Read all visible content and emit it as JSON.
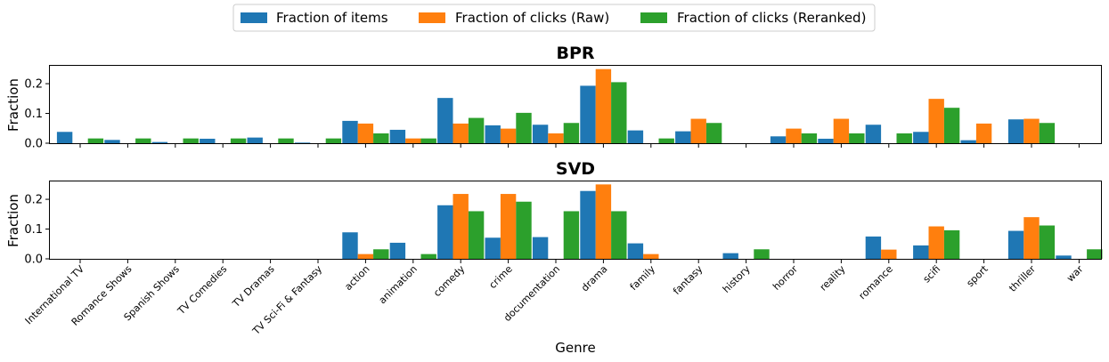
{
  "legend": {
    "items": [
      {
        "label": "Fraction of items",
        "color": "#1f77b4"
      },
      {
        "label": "Fraction of clicks (Raw)",
        "color": "#ff7f0e"
      },
      {
        "label": "Fraction of clicks (Reranked)",
        "color": "#2ca02c"
      }
    ]
  },
  "chart_data": [
    {
      "type": "bar",
      "title": "BPR",
      "xlabel": "",
      "ylabel": "Fraction",
      "ylim": [
        0,
        0.26
      ],
      "yticks": [
        "0.0",
        "0.1",
        "0.2"
      ],
      "grid": false,
      "legend_placement": "top-center",
      "categories": [
        "International TV",
        "Romance Shows",
        "Spanish Shows",
        "TV Comedies",
        "TV Dramas",
        "TV Sci-Fi & Fantasy",
        "action",
        "animation",
        "comedy",
        "crime",
        "documentation",
        "drama",
        "family",
        "fantasy",
        "history",
        "horror",
        "reality",
        "romance",
        "scifi",
        "sport",
        "thriller",
        "war"
      ],
      "series": [
        {
          "name": "Fraction of items",
          "color": "#1f77b4",
          "values": [
            0.038,
            0.011,
            0.004,
            0.015,
            0.019,
            0.002,
            0.075,
            0.045,
            0.152,
            0.06,
            0.062,
            0.193,
            0.043,
            0.04,
            0.0,
            0.023,
            0.015,
            0.062,
            0.038,
            0.01,
            0.08,
            0.0
          ]
        },
        {
          "name": "Fraction of clicks (Raw)",
          "color": "#ff7f0e",
          "values": [
            0.0,
            0.0,
            0.0,
            0.0,
            0.0,
            0.0,
            0.066,
            0.016,
            0.066,
            0.049,
            0.033,
            0.249,
            0.0,
            0.082,
            0.0,
            0.049,
            0.082,
            0.0,
            0.149,
            0.066,
            0.082,
            0.0
          ]
        },
        {
          "name": "Fraction of clicks (Reranked)",
          "color": "#2ca02c",
          "values": [
            0.016,
            0.016,
            0.016,
            0.016,
            0.016,
            0.016,
            0.033,
            0.016,
            0.085,
            0.102,
            0.068,
            0.205,
            0.016,
            0.068,
            0.0,
            0.033,
            0.033,
            0.033,
            0.119,
            0.0,
            0.068,
            0.0
          ]
        }
      ]
    },
    {
      "type": "bar",
      "title": "SVD",
      "xlabel": "Genre",
      "ylabel": "Fraction",
      "ylim": [
        0,
        0.26
      ],
      "yticks": [
        "0.0",
        "0.1",
        "0.2"
      ],
      "grid": false,
      "categories": [
        "International TV",
        "Romance Shows",
        "Spanish Shows",
        "TV Comedies",
        "TV Dramas",
        "TV Sci-Fi & Fantasy",
        "action",
        "animation",
        "comedy",
        "crime",
        "documentation",
        "drama",
        "family",
        "fantasy",
        "history",
        "horror",
        "reality",
        "romance",
        "scifi",
        "sport",
        "thriller",
        "war"
      ],
      "series": [
        {
          "name": "Fraction of items",
          "color": "#1f77b4",
          "values": [
            0.0,
            0.0,
            0.0,
            0.0,
            0.0,
            0.0,
            0.089,
            0.054,
            0.18,
            0.071,
            0.073,
            0.228,
            0.052,
            0.0,
            0.019,
            0.0,
            0.0,
            0.075,
            0.045,
            0.0,
            0.094,
            0.011
          ]
        },
        {
          "name": "Fraction of clicks (Raw)",
          "color": "#ff7f0e",
          "values": [
            0.0,
            0.0,
            0.0,
            0.0,
            0.0,
            0.0,
            0.016,
            0.0,
            0.218,
            0.218,
            0.0,
            0.25,
            0.016,
            0.0,
            0.0,
            0.0,
            0.0,
            0.031,
            0.109,
            0.0,
            0.14,
            0.0
          ]
        },
        {
          "name": "Fraction of clicks (Reranked)",
          "color": "#2ca02c",
          "values": [
            0.0,
            0.0,
            0.0,
            0.0,
            0.0,
            0.0,
            0.032,
            0.016,
            0.16,
            0.192,
            0.16,
            0.16,
            0.0,
            0.0,
            0.032,
            0.0,
            0.0,
            0.0,
            0.096,
            0.0,
            0.112,
            0.032
          ]
        }
      ]
    }
  ]
}
